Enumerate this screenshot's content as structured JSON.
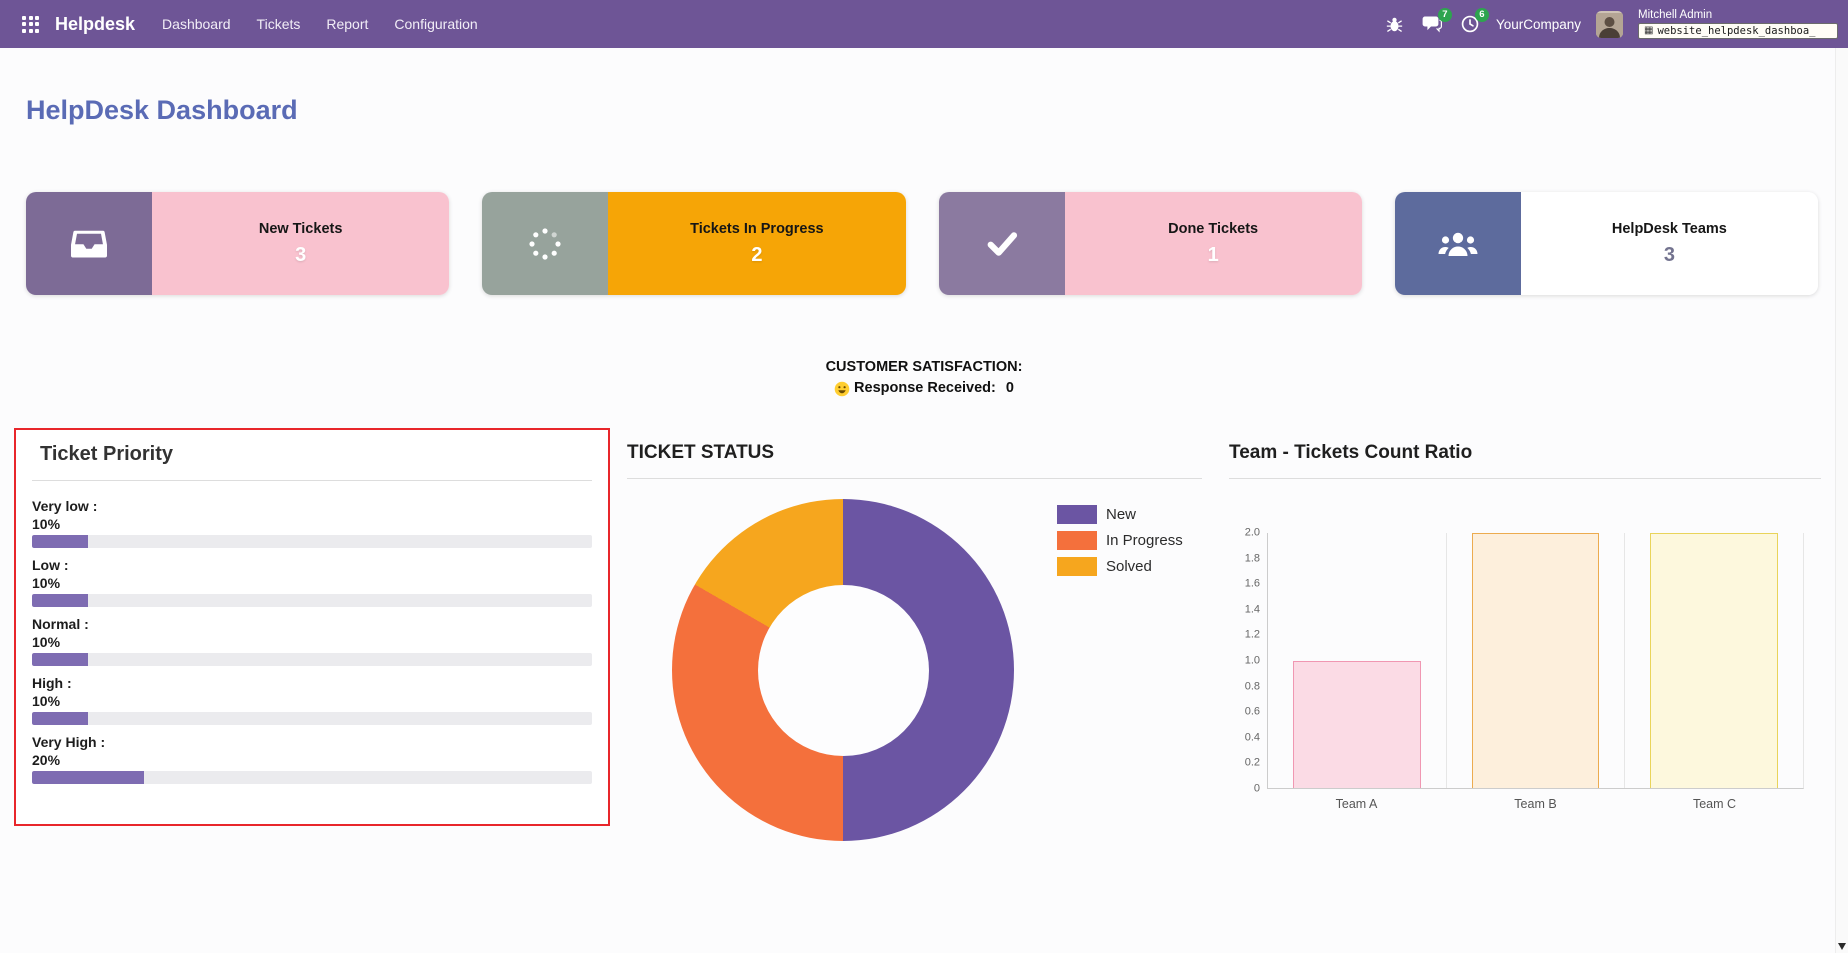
{
  "navbar": {
    "brand": "Helpdesk",
    "menu_items": [
      "Dashboard",
      "Tickets",
      "Report",
      "Configuration"
    ],
    "messages_badge": "7",
    "activities_badge": "6",
    "company": "YourCompany",
    "user_name": "Mitchell Admin",
    "debug_overlay": "website_helpdesk_dashboa_"
  },
  "page_title": "HelpDesk Dashboard",
  "kpi_cards": [
    {
      "label": "New Tickets",
      "value": "3",
      "icon": "inbox-icon"
    },
    {
      "label": "Tickets In Progress",
      "value": "2",
      "icon": "spinner-icon"
    },
    {
      "label": "Done Tickets",
      "value": "1",
      "icon": "check-icon"
    },
    {
      "label": "HelpDesk Teams",
      "value": "3",
      "icon": "users-icon"
    }
  ],
  "satisfaction": {
    "heading": "CUSTOMER SATISFACTION:",
    "icon": "smiley-icon",
    "label": "Response Received:",
    "value": "0"
  },
  "priority_panel": {
    "title": "Ticket Priority",
    "items": [
      {
        "label": "Very low :",
        "pct": "10%"
      },
      {
        "label": "Low :",
        "pct": "10%"
      },
      {
        "label": "Normal :",
        "pct": "10%"
      },
      {
        "label": "High :",
        "pct": "10%"
      },
      {
        "label": "Very High :",
        "pct": "20%"
      }
    ]
  },
  "status_panel": {
    "title": "TICKET STATUS",
    "legend": [
      "New",
      "In Progress",
      "Solved"
    ]
  },
  "team_panel": {
    "title": "Team - Tickets Count Ratio",
    "categories": [
      "Team A",
      "Team B",
      "Team C"
    ]
  },
  "colors": {
    "navbar": "#6e5596",
    "page_title": "#5a6bb5",
    "card_pink": "#f9c2cf",
    "card_orange": "#f6a506",
    "card_icon_purple": "#7d6b96",
    "card_icon_sage": "#97a39c",
    "card_icon_blue": "#5d6b9d",
    "progress_fill": "#7e6cb2",
    "badge_green": "#2ea44f",
    "highlight_red": "#e8262b"
  },
  "chart_data": [
    {
      "type": "pie",
      "subtype": "donut",
      "title": "TICKET STATUS",
      "labels": [
        "New",
        "In Progress",
        "Solved"
      ],
      "values": [
        3,
        2,
        1
      ],
      "percents": [
        50,
        33.3,
        16.7
      ],
      "colors": [
        "#6b55a3",
        "#f4703c",
        "#f6a61e"
      ],
      "legend_position": "right"
    },
    {
      "type": "bar",
      "title": "Team - Tickets Count Ratio",
      "categories": [
        "Team A",
        "Team B",
        "Team C"
      ],
      "values": [
        1,
        2,
        2
      ],
      "ylim": [
        0,
        2
      ],
      "yticks": [
        0,
        0.2,
        0.4,
        0.6,
        0.8,
        1,
        1.2,
        1.4,
        1.6,
        1.8,
        2
      ],
      "bar_fill": [
        "#fbdbe5",
        "#fdefdc",
        "#fdf8dd"
      ],
      "bar_border": [
        "#f097b2",
        "#ecab4f",
        "#e9d45a"
      ],
      "grid": "vertical-separators"
    },
    {
      "type": "bar",
      "orientation": "horizontal",
      "title": "Ticket Priority",
      "categories": [
        "Very low",
        "Low",
        "Normal",
        "High",
        "Very High"
      ],
      "values": [
        10,
        10,
        10,
        10,
        20
      ],
      "unit": "percent",
      "xlim": [
        0,
        100
      ]
    }
  ]
}
